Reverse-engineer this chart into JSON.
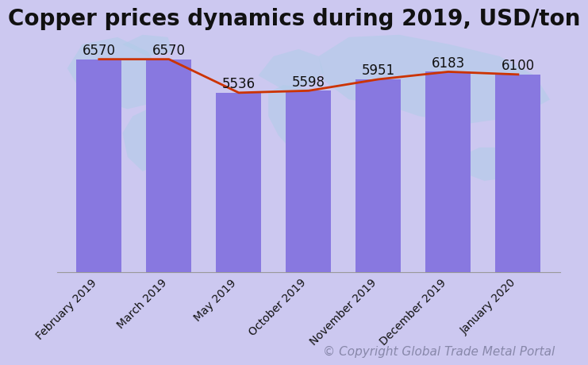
{
  "title": "Copper prices dynamics during 2019, USD/ton",
  "categories": [
    "February 2019",
    "March 2019",
    "May 2019",
    "October 2019",
    "November 2019",
    "December 2019",
    "January 2020"
  ],
  "values": [
    6570,
    6570,
    5536,
    5598,
    5951,
    6183,
    6100
  ],
  "bar_color": "#8878e0",
  "line_color": "#cc3300",
  "background_color": "#ccc8f0",
  "map_color": "#b0cce8",
  "map_alpha": 0.55,
  "label_fontsize": 12,
  "title_fontsize": 20,
  "tick_fontsize": 10,
  "copyright_text": "© Copyright Global Trade Metal Portal",
  "copyright_fontsize": 11,
  "copyright_color": "#8888aa",
  "ylim": [
    0,
    7400
  ],
  "bar_width": 0.65,
  "line_width": 2.0
}
